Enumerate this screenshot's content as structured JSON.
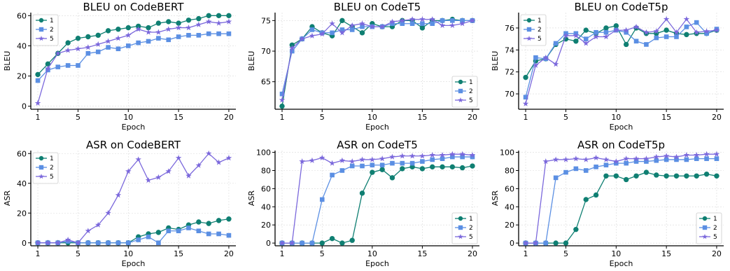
{
  "colors": {
    "1": "#0f7f72",
    "2": "#5b8fe3",
    "5": "#7b68dc"
  },
  "chart_data": [
    {
      "type": "line",
      "title": "BLEU on CodeBERT",
      "xlabel": "Epoch",
      "ylabel": "BLEU",
      "xlim": [
        0.3,
        20.7
      ],
      "ylim": [
        -2,
        62
      ],
      "xticks": [
        1,
        5,
        10,
        15,
        20
      ],
      "yticks": [
        0,
        20,
        40,
        60
      ],
      "legend": "top-left",
      "x": [
        1,
        2,
        3,
        4,
        5,
        6,
        7,
        8,
        9,
        10,
        11,
        12,
        13,
        14,
        15,
        16,
        17,
        18,
        19,
        20
      ],
      "series": [
        {
          "name": "1",
          "marker": "circle",
          "values": [
            21,
            28,
            35,
            42,
            45,
            46,
            47,
            50,
            51,
            52,
            53,
            52,
            55,
            56,
            55,
            57,
            58,
            60,
            60,
            60
          ]
        },
        {
          "name": "2",
          "marker": "square",
          "values": [
            17,
            24,
            26,
            27,
            27,
            35,
            36,
            39,
            38,
            40,
            42,
            43,
            45,
            44,
            46,
            47,
            47,
            48,
            48,
            48
          ]
        },
        {
          "name": "5",
          "marker": "star",
          "values": [
            2,
            25,
            35,
            37,
            38,
            39,
            41,
            43,
            45,
            47,
            51,
            49,
            49,
            51,
            52,
            52,
            54,
            56,
            55,
            56
          ]
        }
      ]
    },
    {
      "type": "line",
      "title": "BLEU on CodeT5",
      "xlabel": "Epoch",
      "ylabel": "BLEU",
      "xlim": [
        0.3,
        20.7
      ],
      "ylim": [
        60.5,
        76.3
      ],
      "xticks": [
        1,
        5,
        10,
        15,
        20
      ],
      "yticks": [
        65,
        70,
        75
      ],
      "legend": "bottom-right",
      "x": [
        1,
        2,
        3,
        4,
        5,
        6,
        7,
        8,
        9,
        10,
        11,
        12,
        13,
        14,
        15,
        16,
        17,
        18,
        19,
        20
      ],
      "series": [
        {
          "name": "1",
          "marker": "circle",
          "values": [
            61,
            71,
            72,
            74,
            73,
            72.5,
            75,
            74,
            73,
            74.5,
            74,
            74,
            75,
            75,
            73.8,
            75,
            75,
            75.2,
            75,
            75
          ]
        },
        {
          "name": "2",
          "marker": "square",
          "values": [
            63,
            70,
            72,
            73.5,
            73,
            73,
            73.5,
            73.5,
            74,
            74,
            74,
            74.5,
            74.5,
            74.5,
            74.5,
            74.5,
            75,
            75,
            75,
            75
          ]
        },
        {
          "name": "5",
          "marker": "star",
          "values": [
            62,
            70.5,
            72,
            72.5,
            72.8,
            74.5,
            73,
            74.2,
            74.5,
            74,
            74,
            74.8,
            75,
            75.2,
            75.2,
            75.2,
            74.2,
            74.2,
            74.5,
            75
          ]
        }
      ]
    },
    {
      "type": "line",
      "title": "BLEU on CodeT5p",
      "xlabel": "Epoch",
      "ylabel": "BLEU",
      "xlim": [
        0.3,
        20.7
      ],
      "ylim": [
        68.6,
        77.4
      ],
      "xticks": [
        1,
        5,
        10,
        15,
        20
      ],
      "yticks": [
        70,
        72,
        74,
        76
      ],
      "legend": "top-left",
      "x": [
        1,
        2,
        3,
        4,
        5,
        6,
        7,
        8,
        9,
        10,
        11,
        12,
        13,
        14,
        15,
        16,
        17,
        18,
        19,
        20
      ],
      "series": [
        {
          "name": "1",
          "marker": "circle",
          "values": [
            71.5,
            73,
            73.2,
            74.5,
            75,
            74.8,
            75.8,
            75.5,
            76,
            76.2,
            74.5,
            76,
            75.5,
            75.5,
            75.8,
            75.5,
            75.4,
            75.5,
            75.5,
            75.8
          ]
        },
        {
          "name": "2",
          "marker": "square",
          "values": [
            69.7,
            73.3,
            73.2,
            74.6,
            75.5,
            75.5,
            75,
            75.6,
            75.6,
            75.8,
            75.6,
            74.8,
            74.5,
            75.1,
            75.2,
            75.2,
            76.1,
            76.5,
            75.5,
            75.9
          ]
        },
        {
          "name": "5",
          "marker": "star",
          "values": [
            69.1,
            72.6,
            73.3,
            72.7,
            75.3,
            75.3,
            74.6,
            75.2,
            75.2,
            75.8,
            75.8,
            76.1,
            75.6,
            75.7,
            76.8,
            75.6,
            76.8,
            75.6,
            75.7,
            75.8
          ]
        }
      ]
    },
    {
      "type": "line",
      "title": "ASR on CodeBERT",
      "xlabel": "Epoch",
      "ylabel": "ASR",
      "xlim": [
        0.3,
        20.7
      ],
      "ylim": [
        -2,
        62
      ],
      "xticks": [
        1,
        5,
        10,
        15,
        20
      ],
      "yticks": [
        0,
        20,
        40,
        60
      ],
      "legend": "top-left",
      "x": [
        1,
        2,
        3,
        4,
        5,
        6,
        7,
        8,
        9,
        10,
        11,
        12,
        13,
        14,
        15,
        16,
        17,
        18,
        19,
        20
      ],
      "series": [
        {
          "name": "1",
          "marker": "circle",
          "values": [
            0,
            0,
            0,
            0,
            0,
            0,
            0,
            0,
            0,
            0,
            4,
            6,
            7,
            10,
            9,
            12,
            14,
            13,
            15,
            16
          ]
        },
        {
          "name": "2",
          "marker": "square",
          "values": [
            0,
            0,
            0,
            1,
            0,
            0,
            0,
            0,
            0,
            0,
            2,
            4,
            0,
            8,
            8,
            10,
            8,
            6,
            6,
            5
          ]
        },
        {
          "name": "5",
          "marker": "star",
          "values": [
            0,
            0,
            0,
            2,
            0,
            8,
            12,
            20,
            32,
            48,
            56,
            42,
            44,
            48,
            57,
            45,
            52,
            60,
            54,
            57
          ]
        }
      ]
    },
    {
      "type": "line",
      "title": "ASR on CodeT5",
      "xlabel": "Epoch",
      "ylabel": "ASR",
      "xlim": [
        0.3,
        20.7
      ],
      "ylim": [
        -3,
        102
      ],
      "xticks": [
        1,
        5,
        10,
        15,
        20
      ],
      "yticks": [
        0,
        20,
        40,
        60,
        80,
        100
      ],
      "legend": "bottom-right",
      "x": [
        1,
        2,
        3,
        4,
        5,
        6,
        7,
        8,
        9,
        10,
        11,
        12,
        13,
        14,
        15,
        16,
        17,
        18,
        19,
        20
      ],
      "series": [
        {
          "name": "1",
          "marker": "circle",
          "values": [
            0,
            0,
            0,
            0,
            0,
            5,
            0,
            3,
            55,
            78,
            81,
            72,
            82,
            84,
            82,
            84,
            84,
            84,
            83,
            85
          ]
        },
        {
          "name": "2",
          "marker": "square",
          "values": [
            0,
            0,
            0,
            0,
            48,
            75,
            80,
            85,
            85,
            86,
            86,
            88,
            88,
            88,
            90,
            92,
            93,
            95,
            95,
            95
          ]
        },
        {
          "name": "5",
          "marker": "star",
          "values": [
            0,
            0,
            90,
            91,
            94,
            88,
            91,
            90,
            92,
            92,
            93,
            95,
            96,
            96,
            96,
            97,
            97,
            98,
            98,
            97
          ]
        }
      ]
    },
    {
      "type": "line",
      "title": "ASR on CodeT5p",
      "xlabel": "Epoch",
      "ylabel": "ASR",
      "xlim": [
        0.3,
        20.7
      ],
      "ylim": [
        -3,
        102
      ],
      "xticks": [
        1,
        5,
        10,
        15,
        20
      ],
      "yticks": [
        0,
        20,
        40,
        60,
        80,
        100
      ],
      "legend": "bottom-right",
      "x": [
        1,
        2,
        3,
        4,
        5,
        6,
        7,
        8,
        9,
        10,
        11,
        12,
        13,
        14,
        15,
        16,
        17,
        18,
        19,
        20
      ],
      "series": [
        {
          "name": "1",
          "marker": "circle",
          "values": [
            0,
            0,
            0,
            0,
            0,
            15,
            48,
            53,
            74,
            74,
            70,
            74,
            78,
            75,
            74,
            74,
            74,
            74,
            76,
            74
          ]
        },
        {
          "name": "2",
          "marker": "square",
          "values": [
            0,
            0,
            0,
            72,
            78,
            82,
            80,
            84,
            86,
            88,
            88,
            90,
            90,
            91,
            92,
            92,
            92,
            93,
            93,
            93
          ]
        },
        {
          "name": "5",
          "marker": "star",
          "values": [
            0,
            0,
            90,
            92,
            92,
            93,
            92,
            94,
            92,
            90,
            93,
            93,
            93,
            95,
            96,
            95,
            97,
            97,
            98,
            98
          ]
        }
      ]
    }
  ]
}
